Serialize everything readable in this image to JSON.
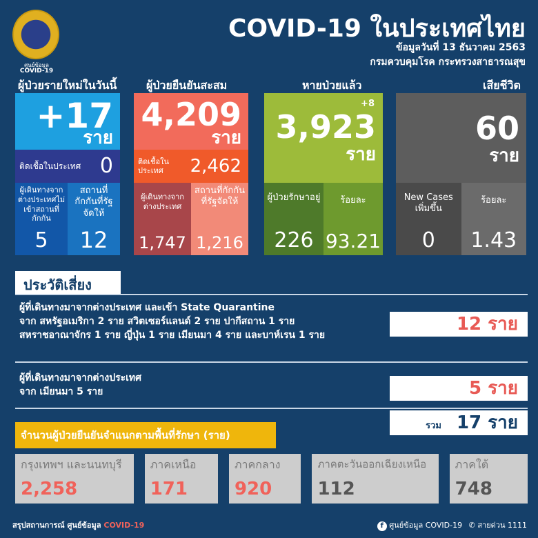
{
  "header": {
    "logo_caption_1": "ศูนย์ข้อมูล",
    "logo_caption_2": "COVID-19",
    "title": "COVID-19 ในประเทศไทย",
    "date": "ข้อมูลวันที่ 13 ธันวาคม 2563",
    "org": "กรมควบคุมโรค กระทรวงสาธารณสุข"
  },
  "unit": "ราย",
  "new_cases": {
    "heading": "ผู้ป่วยรายใหม่ในวันนี้",
    "value": "+17",
    "local_label": "ติดเชื้อในประเทศ",
    "local_value": "0",
    "sub1_label": "ผู้เดินทางจากต่างประเทศไม่เข้าสถานที่กักกัน",
    "sub1_value": "5",
    "sub2_label": "สถานที่กักกันที่รัฐจัดให้",
    "sub2_value": "12",
    "colors": {
      "top": "#1ea0e0",
      "mid": "#2e3a8f",
      "left": "#1257a8",
      "right": "#1a73c0"
    }
  },
  "cumulative": {
    "heading": "ผู้ป่วยยืนยันสะสม",
    "value": "4,209",
    "local_label": "ติดเชื้อในประเทศ",
    "local_value": "2,462",
    "sub1_label": "ผู้เดินทางจากต่างประเทศ",
    "sub1_value": "1,747",
    "sub2_label": "สถานที่กักกันที่รัฐจัดให้",
    "sub2_value": "1,216"
  },
  "recovered": {
    "heading": "หายป่วยแล้ว",
    "delta": "+8",
    "value": "3,923",
    "sub1_label": "ผู้ป่วยรักษาอยู่",
    "sub1_value": "226",
    "sub2_label": "ร้อยละ",
    "sub2_value": "93.21"
  },
  "deaths": {
    "heading": "เสียชีวิต",
    "value": "60",
    "sub1_label": "New Cases เพิ่มขึ้น",
    "sub1_value": "0",
    "sub2_label": "ร้อยละ",
    "sub2_value": "1.43"
  },
  "risk": {
    "heading": "ประวัติเสี่ยง",
    "items": [
      {
        "lines": [
          "ผู้ที่เดินทางมาจากต่างประเทศ และเข้า State Quarantine",
          "จาก สหรัฐอเมริกา 2 ราย สวิตเซอร์แลนด์ 2 ราย ปากีสถาน 1 ราย",
          "สหราชอาณาจักร 1 ราย ญี่ปุ่น 1 ราย เมียนมา 4 ราย และบาห์เรน 1 ราย"
        ],
        "count": "12 ราย"
      },
      {
        "lines": [
          "ผู้ที่เดินทางมาจากต่างประเทศ",
          "จาก เมียนมา 5 ราย"
        ],
        "count": "5 ราย"
      }
    ],
    "total_label": "รวม",
    "total": "17 ราย"
  },
  "regions": {
    "heading": "จำนวนผู้ป่วยยืนยันจำแนกตามพื้นที่รักษา (ราย)",
    "items": [
      {
        "label": "กรุงเทพฯ และนนทบุรี",
        "value": "2,258"
      },
      {
        "label": "ภาคเหนือ",
        "value": "171"
      },
      {
        "label": "ภาคกลาง",
        "value": "920"
      },
      {
        "label": "ภาคตะวันออกเฉียงเหนือ",
        "value": "112"
      },
      {
        "label": "ภาคใต้",
        "value": "748"
      }
    ]
  },
  "footer": {
    "left": "สรุปสถานการณ์ ศูนย์ข้อมูล",
    "left_highlight": "COVID-19",
    "facebook": "ศูนย์ข้อมูล COVID-19",
    "hotline": "สายด่วน 1111"
  }
}
